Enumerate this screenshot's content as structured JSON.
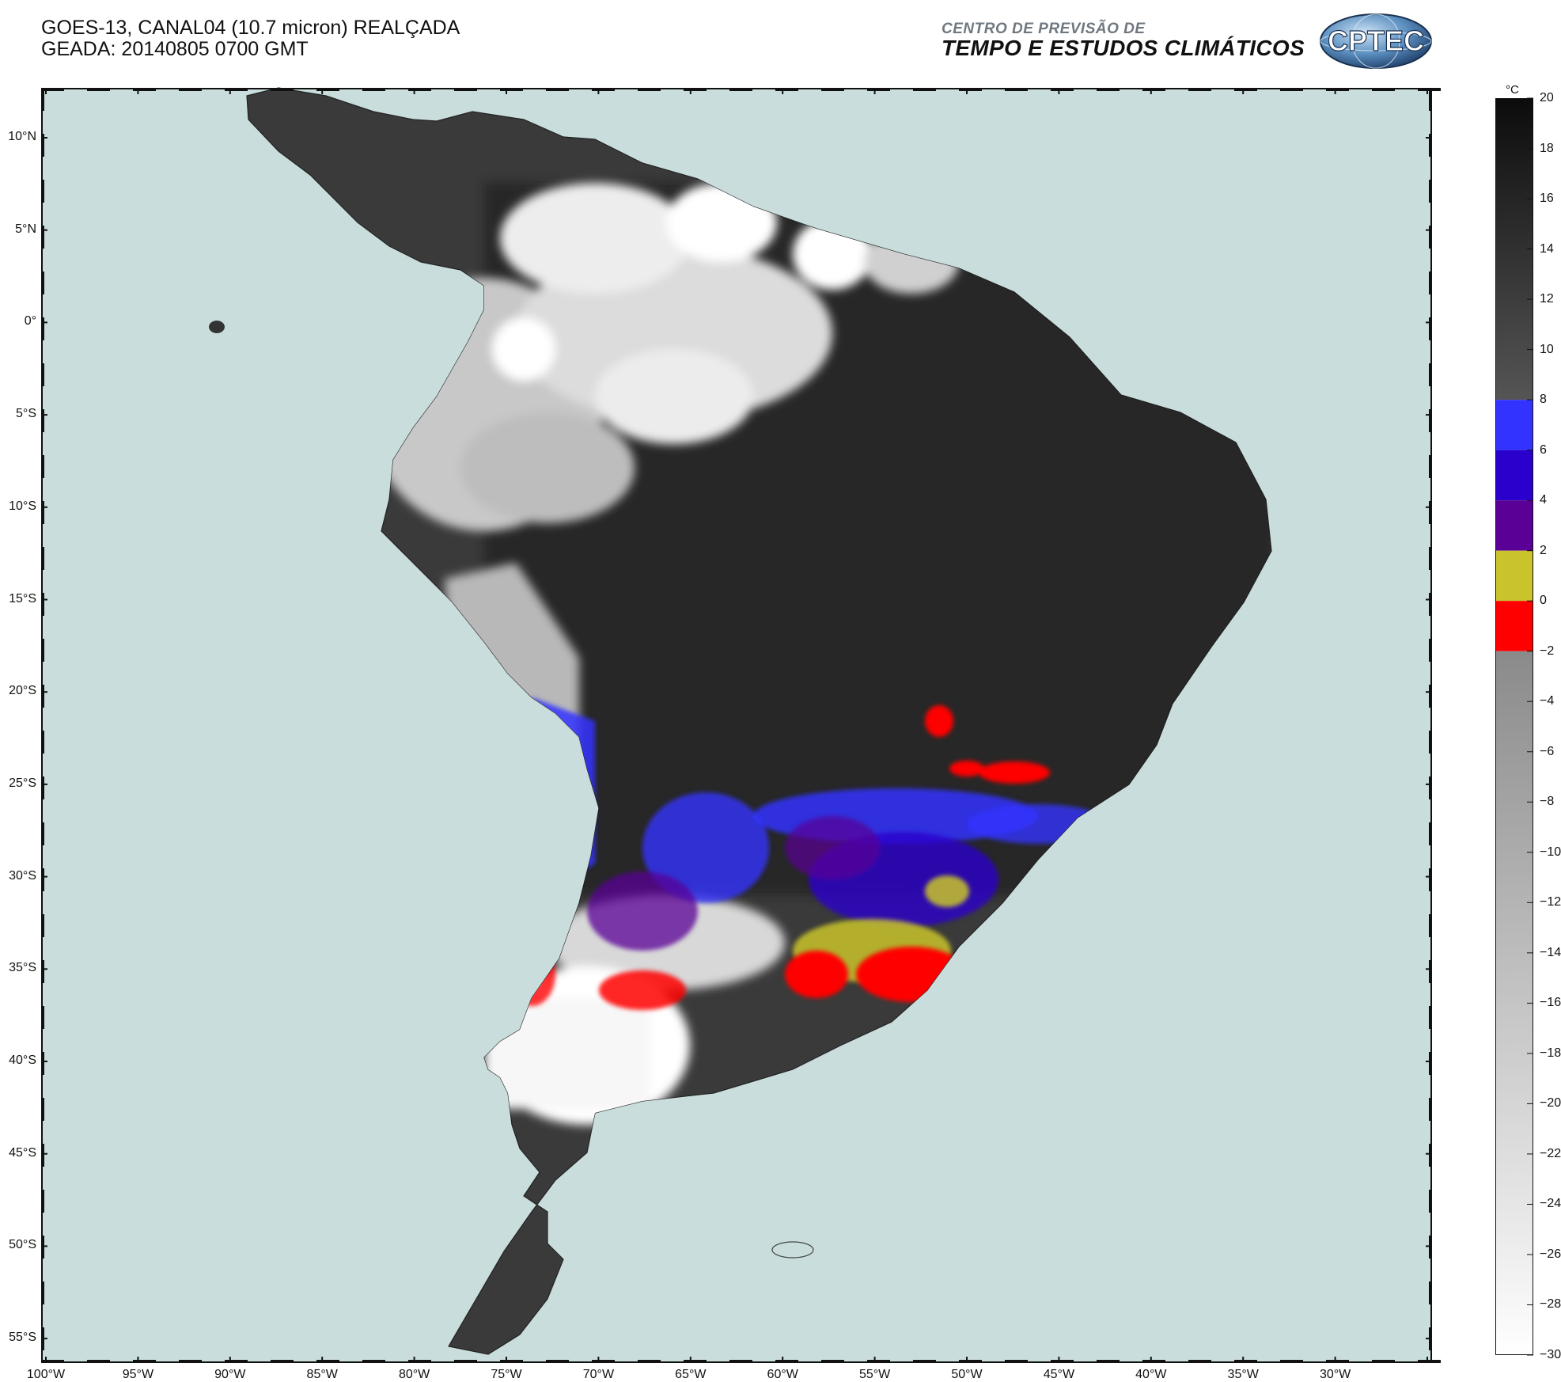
{
  "header": {
    "line1": "GOES-13, CANAL04 (10.7 micron) REALÇADA",
    "line2": "GEADA: 20140805 0700 GMT"
  },
  "institution": {
    "subtitle": "CENTRO DE PREVISÃO DE",
    "name": "TEMPO E ESTUDOS CLIMÁTICOS",
    "logo_text": "CPTEC"
  },
  "map": {
    "lat_labels": [
      "10°N",
      "5°N",
      "0°",
      "5°S",
      "10°S",
      "15°S",
      "20°S",
      "25°S",
      "30°S",
      "35°S",
      "40°S",
      "45°S",
      "50°S",
      "55°S"
    ],
    "lon_labels": [
      "100°W",
      "95°W",
      "90°W",
      "85°W",
      "80°W",
      "75°W",
      "70°W",
      "65°W",
      "60°W",
      "55°W",
      "50°W",
      "45°W",
      "40°W",
      "35°W",
      "30°W"
    ],
    "extent": {
      "lon": [
        -100,
        -25
      ],
      "lat": [
        -56,
        12.5
      ]
    },
    "ocean_color": "#c9dddc",
    "border_color": "#444444"
  },
  "colorbar": {
    "unit": "°C",
    "tick_labels": [
      "20",
      "18",
      "16",
      "14",
      "12",
      "10",
      "8",
      "6",
      "4",
      "2",
      "0",
      "−2",
      "−4",
      "−6",
      "−8",
      "−10",
      "−12",
      "−14",
      "−16",
      "−18",
      "−20",
      "−22",
      "−24",
      "−26",
      "−28",
      "−30"
    ],
    "range": [
      -30,
      20
    ],
    "bands": [
      {
        "from": 8,
        "to": 20,
        "type": "gradient",
        "top_color": "#0c0c0c",
        "bottom_color": "#555555"
      },
      {
        "from": 6,
        "to": 8,
        "color": "#3333ff"
      },
      {
        "from": 4,
        "to": 6,
        "color": "#2a00cc"
      },
      {
        "from": 2,
        "to": 4,
        "color": "#5a0096"
      },
      {
        "from": 0,
        "to": 2,
        "color": "#c9c42c"
      },
      {
        "from": -2,
        "to": 0,
        "color": "#ff0000"
      },
      {
        "from": -30,
        "to": -2,
        "type": "gradient",
        "top_color": "#8a8a8a",
        "bottom_color": "#ffffff"
      }
    ]
  }
}
